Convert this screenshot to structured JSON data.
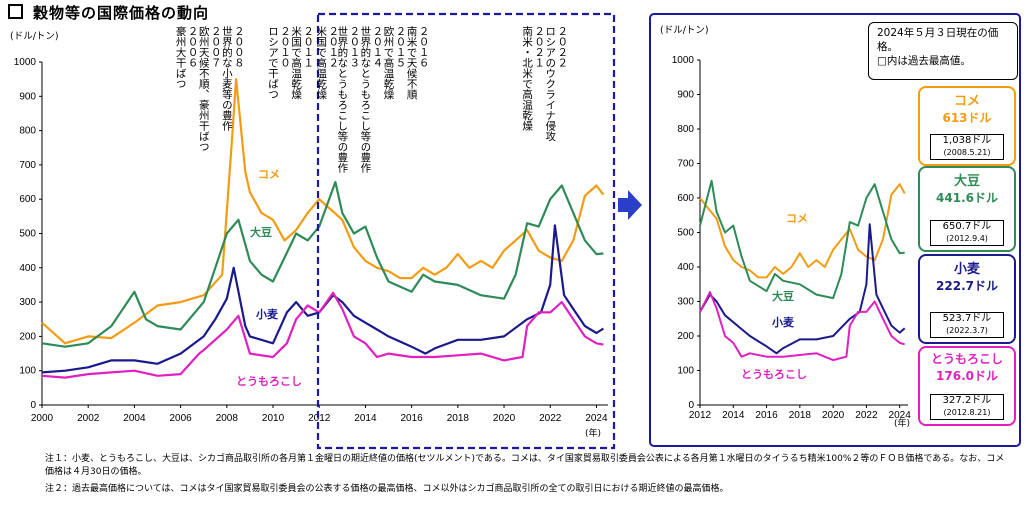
{
  "title": "穀物等の国際価格の動向",
  "left_chart": {
    "unit": "(ドル/トン)",
    "year_unit": "(年)",
    "y_ticks": [
      "0",
      "100",
      "200",
      "300",
      "400",
      "500",
      "600",
      "700",
      "800",
      "900",
      "1000"
    ],
    "x_ticks": [
      "2000",
      "2002",
      "2004",
      "2006",
      "2008",
      "2010",
      "2012",
      "2014",
      "2016",
      "2018",
      "2020",
      "2022",
      "2024"
    ],
    "events": [
      {
        "year": "２００６",
        "text": "豪州大干ばつ"
      },
      {
        "year": "２００７",
        "text": "欧州天候不順、豪州干ばつ"
      },
      {
        "year": "２００８",
        "text": "世界的な小麦等の豊作"
      },
      {
        "year": "２０１０",
        "text": "ロシアで干ばつ"
      },
      {
        "year": "２０１１",
        "text": "米国で高温乾燥"
      },
      {
        "year": "２０１２",
        "text": "米国で高温乾燥"
      },
      {
        "year": "２０１３",
        "text": "世界的なとうもろこし等の豊作"
      },
      {
        "year": "２０１４",
        "text": "世界的なとうもろこし等の豊作"
      },
      {
        "year": "２０１５",
        "text": "欧州で高温乾燥"
      },
      {
        "year": "２０１６",
        "text": "南米で天候不順"
      },
      {
        "year": "２０２１",
        "text": "南米・北米で高温乾燥"
      },
      {
        "year": "２０２２",
        "text": "ロシアのウクライナ侵攻"
      }
    ],
    "series_labels": {
      "rice": "コメ",
      "soy": "大豆",
      "wheat": "小麦",
      "corn": "とうもろこし"
    }
  },
  "right_chart": {
    "unit": "(ドル/トン)",
    "year_unit": "(年)",
    "y_ticks": [
      "0",
      "100",
      "200",
      "300",
      "400",
      "500",
      "600",
      "700",
      "800",
      "900",
      "1000"
    ],
    "x_ticks": [
      "2012",
      "2014",
      "2016",
      "2018",
      "2020",
      "2022",
      "2024"
    ],
    "series_labels": {
      "rice": "コメ",
      "soy": "大豆",
      "wheat": "小麦",
      "corn": "とうもろこし"
    },
    "info": "2024年５月３日現在の価格。\n□内は過去最高値。",
    "prices": [
      {
        "name": "コメ",
        "price": "613ドル",
        "record": "1,038ドル",
        "record_date": "(2008.5.21)",
        "color": "#f39c12"
      },
      {
        "name": "大豆",
        "price": "441.6ドル",
        "record": "650.7ドル",
        "record_date": "(2012.9.4)",
        "color": "#2e8b57"
      },
      {
        "name": "小麦",
        "price": "222.7ドル",
        "record": "523.7ドル",
        "record_date": "(2022.3.7)",
        "color": "#1a1a8c"
      },
      {
        "name": "とうもろこし",
        "price": "176.0ドル",
        "record": "327.2ドル",
        "record_date": "(2012.8.21)",
        "color": "#e020c0"
      }
    ]
  },
  "notes": [
    "注１：小麦、とうもろこし、大豆は、シカゴ商品取引所の各月第１金曜日の期近終値の価格(セツルメント)である。コメは、タイ国家貿易取引委員会公表による各月第１水曜日のタイうるち精米100%２等のＦＯＢ価格である。なお、コメ価格は４月30日の価格。",
    "注２：過去最高価格については、コメはタイ国家貿易取引委員会の公表する価格の最高価格、コメ以外はシカゴ商品取引所の全ての取引日における期近終値の最高価格。"
  ],
  "colors": {
    "rice": "#f39c12",
    "soy": "#2e8b57",
    "wheat": "#1a1a8c",
    "corn": "#e020c0",
    "dash": "#1a1aa0"
  },
  "chart_data": [
    {
      "type": "line",
      "title": "穀物等の国際価格の動向",
      "ylabel": "(ドル/トン)",
      "xlabel": "(年)",
      "ylim": [
        0,
        1000
      ],
      "xlim": [
        2000,
        2024.5
      ],
      "series": [
        {
          "name": "コメ",
          "x": [
            2000,
            2001,
            2002,
            2003,
            2004,
            2005,
            2006,
            2007,
            2007.8,
            2008.2,
            2008.4,
            2008.8,
            2009,
            2009.5,
            2010,
            2010.5,
            2011,
            2011.5,
            2012,
            2012.5,
            2013,
            2013.5,
            2014,
            2014.5,
            2015,
            2015.5,
            2016,
            2016.5,
            2017,
            2017.5,
            2018,
            2018.5,
            2019,
            2019.5,
            2020,
            2020.5,
            2021,
            2021.5,
            2022,
            2022.5,
            2023,
            2023.5,
            2024,
            2024.3
          ],
          "y": [
            240,
            180,
            200,
            195,
            240,
            290,
            300,
            320,
            380,
            750,
            950,
            680,
            620,
            560,
            540,
            480,
            510,
            560,
            600,
            570,
            540,
            460,
            420,
            400,
            390,
            370,
            370,
            400,
            380,
            400,
            440,
            400,
            420,
            400,
            450,
            480,
            510,
            450,
            430,
            420,
            480,
            610,
            640,
            613
          ]
        },
        {
          "name": "大豆",
          "x": [
            2000,
            2001,
            2002,
            2003,
            2004,
            2004.5,
            2005,
            2006,
            2007,
            2007.5,
            2008,
            2008.5,
            2009,
            2009.5,
            2010,
            2010.5,
            2011,
            2011.5,
            2012,
            2012.7,
            2013,
            2013.5,
            2014,
            2014.5,
            2015,
            2016,
            2016.5,
            2017,
            2018,
            2019,
            2020,
            2020.5,
            2021,
            2021.5,
            2022,
            2022.5,
            2023,
            2023.5,
            2024,
            2024.3
          ],
          "y": [
            180,
            170,
            180,
            230,
            330,
            250,
            230,
            220,
            300,
            400,
            500,
            540,
            420,
            380,
            360,
            430,
            500,
            480,
            520,
            650,
            560,
            500,
            520,
            430,
            360,
            330,
            380,
            360,
            350,
            320,
            310,
            380,
            530,
            520,
            600,
            640,
            560,
            480,
            440,
            441.6
          ]
        },
        {
          "name": "小麦",
          "x": [
            2000,
            2001,
            2002,
            2003,
            2004,
            2005,
            2006,
            2007,
            2007.5,
            2008,
            2008.3,
            2008.8,
            2009,
            2010,
            2010.6,
            2011,
            2011.5,
            2012,
            2012.6,
            2013,
            2013.5,
            2014,
            2014.5,
            2015,
            2016,
            2016.6,
            2017,
            2018,
            2019,
            2020,
            2021,
            2021.6,
            2022,
            2022.2,
            2022.6,
            2023,
            2023.5,
            2024,
            2024.3
          ],
          "y": [
            95,
            100,
            110,
            130,
            130,
            120,
            150,
            200,
            250,
            310,
            400,
            230,
            200,
            180,
            270,
            300,
            260,
            270,
            320,
            300,
            260,
            240,
            220,
            200,
            170,
            150,
            165,
            190,
            190,
            200,
            250,
            270,
            350,
            523.7,
            320,
            280,
            230,
            210,
            222.7
          ]
        },
        {
          "name": "とうもろこし",
          "x": [
            2000,
            2001,
            2002,
            2003,
            2004,
            2005,
            2006,
            2006.8,
            2007,
            2008,
            2008.5,
            2009,
            2010,
            2010.6,
            2011,
            2011.5,
            2012,
            2012.6,
            2013,
            2013.5,
            2014,
            2014.5,
            2015,
            2016,
            2017,
            2018,
            2019,
            2020,
            2020.8,
            2021,
            2021.5,
            2022,
            2022.5,
            2023,
            2023.5,
            2024,
            2024.3
          ],
          "y": [
            85,
            80,
            90,
            95,
            100,
            85,
            90,
            150,
            160,
            220,
            260,
            150,
            140,
            180,
            250,
            290,
            270,
            327.2,
            280,
            200,
            180,
            140,
            150,
            140,
            140,
            145,
            150,
            130,
            140,
            230,
            270,
            270,
            300,
            250,
            200,
            180,
            176
          ]
        }
      ]
    },
    {
      "type": "line",
      "ylabel": "(ドル/トン)",
      "xlabel": "(年)",
      "ylim": [
        0,
        1000
      ],
      "xlim": [
        2012,
        2024.5
      ],
      "series": [
        {
          "name": "コメ",
          "x": [
            2012,
            2012.5,
            2013,
            2013.5,
            2014,
            2014.5,
            2015,
            2015.5,
            2016,
            2016.5,
            2017,
            2017.5,
            2018,
            2018.5,
            2019,
            2019.5,
            2020,
            2020.5,
            2021,
            2021.5,
            2022,
            2022.5,
            2023,
            2023.5,
            2024,
            2024.3
          ],
          "y": [
            600,
            570,
            540,
            460,
            420,
            400,
            390,
            370,
            370,
            400,
            380,
            400,
            440,
            400,
            420,
            400,
            450,
            480,
            510,
            450,
            430,
            420,
            480,
            610,
            640,
            613
          ]
        },
        {
          "name": "大豆",
          "x": [
            2012,
            2012.7,
            2013,
            2013.5,
            2014,
            2014.5,
            2015,
            2016,
            2016.5,
            2017,
            2018,
            2019,
            2020,
            2020.5,
            2021,
            2021.5,
            2022,
            2022.5,
            2023,
            2023.5,
            2024,
            2024.3
          ],
          "y": [
            520,
            650,
            560,
            500,
            520,
            430,
            360,
            330,
            380,
            360,
            350,
            320,
            310,
            380,
            530,
            520,
            600,
            640,
            560,
            480,
            440,
            441.6
          ]
        },
        {
          "name": "小麦",
          "x": [
            2012,
            2012.6,
            2013,
            2013.5,
            2014,
            2014.5,
            2015,
            2016,
            2016.6,
            2017,
            2018,
            2019,
            2020,
            2021,
            2021.6,
            2022,
            2022.2,
            2022.6,
            2023,
            2023.5,
            2024,
            2024.3
          ],
          "y": [
            270,
            320,
            300,
            260,
            240,
            220,
            200,
            170,
            150,
            165,
            190,
            190,
            200,
            250,
            270,
            350,
            523.7,
            320,
            280,
            230,
            210,
            222.7
          ]
        },
        {
          "name": "とうもろこし",
          "x": [
            2012,
            2012.6,
            2013,
            2013.5,
            2014,
            2014.5,
            2015,
            2016,
            2017,
            2018,
            2019,
            2020,
            2020.8,
            2021,
            2021.5,
            2022,
            2022.5,
            2023,
            2023.5,
            2024,
            2024.3
          ],
          "y": [
            270,
            327.2,
            280,
            200,
            180,
            140,
            150,
            140,
            140,
            145,
            150,
            130,
            140,
            230,
            270,
            270,
            300,
            250,
            200,
            180,
            176
          ]
        }
      ]
    }
  ]
}
